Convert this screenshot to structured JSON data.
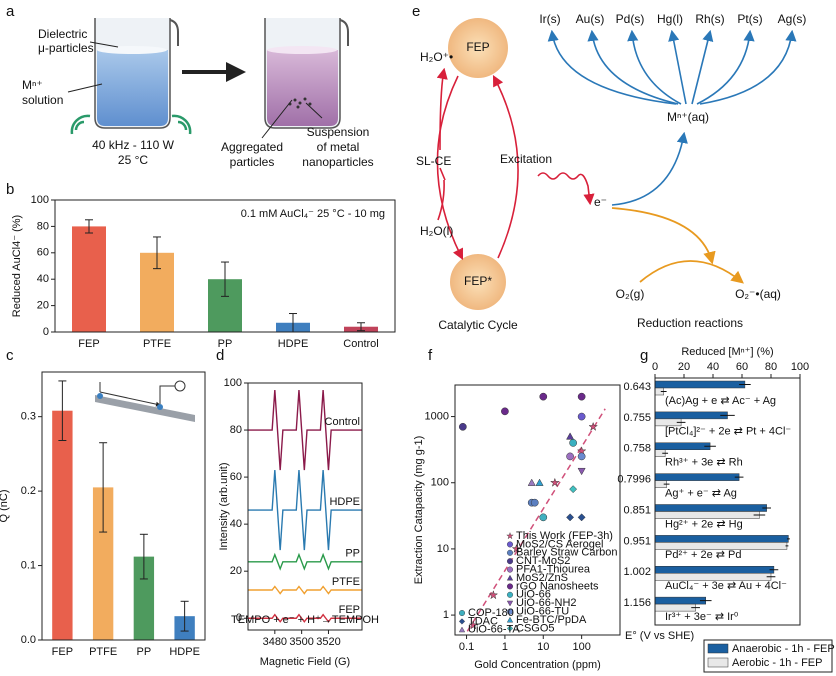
{
  "panel_letters": [
    "a",
    "b",
    "c",
    "d",
    "e",
    "f",
    "g"
  ],
  "panel_a": {
    "labels": [
      "Dielectric",
      "μ-particles",
      "Mⁿ⁺",
      "solution",
      "40 kHz - 110 W",
      "25 °C",
      "Aggregated",
      "particles",
      "Suspension",
      "of metal",
      "nanoparticles"
    ]
  },
  "panel_e": {
    "fep": "FEP",
    "fep_star": "FEP*",
    "h2o_plus": "H₂O⁺•",
    "slce": "SL-CE",
    "h2o": "H₂O(l)",
    "excitation": "Excitation",
    "electron": "e⁻",
    "cycle": "Catalytic Cycle",
    "metals": [
      "Ir(s)",
      "Au(s)",
      "Pd(s)",
      "Hg(l)",
      "Rh(s)",
      "Pt(s)",
      "Ag(s)"
    ],
    "ion": "Mⁿ⁺(aq)",
    "o2": "O₂(g)",
    "o2_minus": "O₂⁻•(aq)",
    "reduction": "Reduction reactions"
  },
  "chart_data": [
    {
      "type": "bar",
      "annotation": "0.1 mM AuCl₄⁻ 25 °C - 10 mg",
      "ylabel": "Reduced AuCl4⁻ (%)",
      "categories": [
        "FEP",
        "PTFE",
        "PP",
        "HDPE",
        "Control"
      ],
      "values": [
        80,
        60,
        40,
        7,
        4
      ],
      "errors": [
        5,
        12,
        13,
        7,
        3
      ],
      "colors": [
        "#e8604c",
        "#f2ac5e",
        "#4e9a5e",
        "#3f7fbf",
        "#c0435a"
      ],
      "ylim": [
        0,
        100
      ],
      "yticks": [
        0,
        20,
        40,
        60,
        80,
        100
      ]
    },
    {
      "type": "bar",
      "ylabel": "Q (nC)",
      "categories": [
        "FEP",
        "PTFE",
        "PP",
        "HDPE"
      ],
      "values": [
        0.308,
        0.205,
        0.112,
        0.032
      ],
      "errors": [
        0.04,
        0.06,
        0.03,
        0.02
      ],
      "colors": [
        "#e8604c",
        "#f2ac5e",
        "#4e9a5e",
        "#3f7fbf"
      ],
      "ylim": [
        0,
        0.36
      ],
      "yticks": [
        {
          "value": 0,
          "label": "0.0"
        },
        0.1,
        0.2,
        0.3
      ]
    },
    {
      "type": "line",
      "xlabel": "Magnetic Field (G)",
      "ylabel": "Intensity (arb.unit)",
      "annotation": "TEMPO + e⁻ + H⁺→TEMPOH",
      "x": [
        3460,
        3478,
        3480,
        3482,
        3484,
        3486,
        3496,
        3498,
        3500,
        3502,
        3504,
        3514,
        3516,
        3518,
        3520,
        3522,
        3545
      ],
      "series": [
        {
          "name": "Control",
          "color": "#8b1a4a",
          "values": [
            80,
            80,
            97,
            80,
            63,
            80,
            80,
            97,
            80,
            63,
            80,
            80,
            97,
            80,
            63,
            80,
            80
          ]
        },
        {
          "name": "HDPE",
          "color": "#2a7ab0",
          "values": [
            46,
            46,
            63,
            46,
            29,
            46,
            46,
            63,
            46,
            29,
            46,
            46,
            63,
            46,
            29,
            46,
            46
          ]
        },
        {
          "name": "PP",
          "color": "#2a9a4a",
          "values": [
            24,
            24,
            27,
            24,
            21,
            24,
            24,
            27,
            24,
            21,
            24,
            24,
            27,
            24,
            21,
            24,
            24
          ]
        },
        {
          "name": "PTFE",
          "color": "#f0a030",
          "values": [
            12,
            12,
            13.5,
            12,
            10.5,
            12,
            12,
            13.5,
            12,
            10.5,
            12,
            12,
            13.5,
            12,
            10.5,
            12,
            12
          ]
        },
        {
          "name": "FEP",
          "color": "#d03040",
          "values": [
            0,
            0,
            1.5,
            0,
            -1.5,
            0,
            0,
            1.5,
            0,
            -1.5,
            0,
            0,
            1.5,
            0,
            -1.5,
            0,
            0
          ]
        }
      ],
      "xlim": [
        3460,
        3545
      ],
      "xticks": [
        3480,
        3500,
        3520
      ],
      "ylim": [
        -5,
        100
      ],
      "yticks": [
        0,
        20,
        40,
        60,
        80,
        100
      ]
    },
    {
      "type": "scatter",
      "xlabel": "Gold Concentration (ppm)",
      "ylabel": "Extraction Catapacity (mg g-1)",
      "xscale": "log",
      "yscale": "log",
      "xlim": [
        0.05,
        1000
      ],
      "xticks": [
        0.1,
        1,
        10,
        100
      ],
      "ylim": [
        0.5,
        3000
      ],
      "yticks": [
        1,
        10,
        100,
        1000
      ],
      "series": [
        {
          "name": "This Work (FEP-3h)",
          "color": "#d0507a",
          "marker": "star",
          "x": [
            0.15,
            0.5,
            2,
            20,
            100,
            200
          ],
          "values": [
            0.7,
            2,
            10,
            100,
            300,
            700
          ]
        },
        {
          "name": "MoS2/CS Aerogel",
          "color": "#6a5acd",
          "marker": "circle",
          "x": [
            100
          ],
          "values": [
            1000
          ]
        },
        {
          "name": "Barley Straw Carbon",
          "color": "#5b7fc0",
          "marker": "circle",
          "x": [
            5,
            6
          ],
          "values": [
            50,
            50
          ]
        },
        {
          "name": "CNT-MoS2",
          "color": "#4a3a8a",
          "marker": "circle",
          "x": [
            0.08
          ],
          "values": [
            700
          ]
        },
        {
          "name": "PFA1-Thiourea",
          "color": "#9b6fc0",
          "marker": "circle",
          "x": [
            50
          ],
          "values": [
            250
          ]
        },
        {
          "name": "MoS2/ZnS",
          "color": "#5a3f9a",
          "marker": "triangle",
          "x": [
            50
          ],
          "values": [
            500
          ]
        },
        {
          "name": "rGO Nanosheets",
          "color": "#6a2a8a",
          "marker": "circle",
          "x": [
            1,
            10,
            100
          ],
          "values": [
            1200,
            2000,
            2000
          ]
        },
        {
          "name": "UiO-66",
          "color": "#3ab0c0",
          "marker": "circle",
          "x": [
            60
          ],
          "values": [
            400
          ]
        },
        {
          "name": "UiO-66-NH2",
          "color": "#8a5ab0",
          "marker": "triangle-down",
          "x": [
            100
          ],
          "values": [
            150
          ]
        },
        {
          "name": "UiO-66-TU",
          "color": "#6a8ad0",
          "marker": "circle",
          "x": [
            100
          ],
          "values": [
            250
          ]
        },
        {
          "name": "Fe-BTC/PpDA",
          "color": "#30a0d0",
          "marker": "triangle",
          "x": [
            8
          ],
          "values": [
            100
          ]
        },
        {
          "name": "CSGO5",
          "color": "#40c0c0",
          "marker": "diamond",
          "x": [
            60
          ],
          "values": [
            80
          ]
        },
        {
          "name": "COP-180",
          "color": "#40b0c0",
          "marker": "circle",
          "x": [
            10
          ],
          "values": [
            30
          ]
        },
        {
          "name": "TDAC",
          "color": "#2a5090",
          "marker": "diamond",
          "x": [
            50,
            100
          ],
          "values": [
            30,
            30
          ]
        },
        {
          "name": "UiO-66-TA",
          "color": "#9a7ac0",
          "marker": "triangle",
          "x": [
            5
          ],
          "values": [
            100
          ]
        }
      ]
    },
    {
      "type": "hbar",
      "xlabel": "Reduced [Mⁿ⁺] (%)",
      "ylabel": "E° (V vs SHE)",
      "categories": [
        "0.643",
        "0.755",
        "0.758",
        "0.7996",
        "0.851",
        "0.951",
        "1.002",
        "1.156"
      ],
      "reactions": [
        "(Ac)Ag + e ⇄ Ac⁻ + Ag",
        "[PtCl₄]²⁻ + 2e ⇄ Pt + 4Cl⁻",
        "Rh³⁺ + 3e ⇄ Rh",
        "Ag⁺ + e⁻ ⇄ Ag",
        "Hg²⁺ + 2e ⇄ Hg",
        "Pd²⁺ + 2e ⇄ Pd",
        "AuCl₄⁻ + 3e ⇄ Au + 4Cl⁻",
        "Ir³⁺ + 3e⁻ ⇄ Ir⁰"
      ],
      "series": [
        {
          "name": "Anaerobic - 1h - FEP",
          "color": "#1a5fa0",
          "values": [
            62,
            50,
            38,
            58,
            77,
            92,
            82,
            35
          ],
          "errors": [
            4,
            5,
            4,
            3,
            3,
            1,
            3,
            4
          ]
        },
        {
          "name": "Aerobic - 1h - FEP",
          "color": "#e8e8e8",
          "values": [
            6,
            18,
            7,
            8,
            72,
            91,
            80,
            28
          ],
          "errors": [
            2,
            3,
            2,
            2,
            4,
            1,
            3,
            3
          ]
        }
      ],
      "xlim": [
        0,
        100
      ],
      "xticks": [
        0,
        20,
        40,
        60,
        80,
        100
      ]
    }
  ]
}
